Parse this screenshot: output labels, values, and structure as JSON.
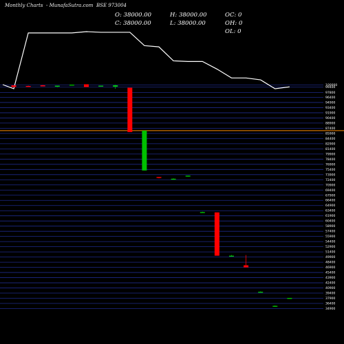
{
  "header": {
    "left": "Monthly Charts",
    "middle": "- MunafaSutra.com",
    "symbol": "BSE 973004"
  },
  "ohlc": {
    "o": "O: 38000.00",
    "h": "H: 38000.00",
    "oc": "OC: 0",
    "c": "C: 38000.00",
    "l": "L: 38000.00",
    "oh": "OH: 0",
    "ol": "OL: 0"
  },
  "colors": {
    "background": "#000000",
    "grid": "#1e2a8a",
    "up": "#00c000",
    "down": "#ff0000",
    "line": "#ffffff",
    "reference_line": "#ff8c00"
  },
  "chart_data": {
    "type": "candlestick",
    "ylim": [
      35000,
      100500
    ],
    "y_ticks": [
      100000,
      99400,
      97800,
      96400,
      94900,
      93400,
      91900,
      90400,
      88900,
      87400,
      85900,
      84400,
      82900,
      81400,
      79900,
      78400,
      76900,
      75400,
      73900,
      72400,
      70900,
      69400,
      67900,
      66400,
      64900,
      63400,
      61900,
      60400,
      58900,
      57400,
      55900,
      54400,
      52900,
      51400,
      49900,
      48400,
      46900,
      45400,
      43900,
      42400,
      40900,
      39400,
      37900,
      36400,
      34900
    ],
    "reference_line": 86700,
    "candles": [
      {
        "open": 99900,
        "high": 99900,
        "low": 99400,
        "close": 99400
      },
      {
        "open": 99700,
        "high": 99800,
        "low": 99500,
        "close": 99600
      },
      {
        "open": 99900,
        "high": 100000,
        "low": 99600,
        "close": 99600
      },
      {
        "open": 99500,
        "high": 99800,
        "low": 99300,
        "close": 99800
      },
      {
        "open": 100000,
        "high": 100100,
        "low": 99900,
        "close": 100100
      },
      {
        "open": 100200,
        "high": 100200,
        "low": 99400,
        "close": 99400
      },
      {
        "open": 99800,
        "high": 99800,
        "low": 99700,
        "close": 99800
      },
      {
        "open": 99500,
        "high": 100100,
        "low": 98900,
        "close": 99900
      },
      {
        "open": 99200,
        "high": 99200,
        "low": 86300,
        "close": 86300
      },
      {
        "open": 75100,
        "high": 86700,
        "low": 75100,
        "close": 86700
      },
      {
        "open": 73200,
        "high": 73200,
        "low": 72800,
        "close": 73000
      },
      {
        "open": 72600,
        "high": 72800,
        "low": 72400,
        "close": 72700
      },
      {
        "open": 73400,
        "high": 73600,
        "low": 73300,
        "close": 73600
      },
      {
        "open": 63000,
        "high": 63100,
        "low": 62800,
        "close": 63000
      },
      {
        "open": 62900,
        "high": 62900,
        "low": 50300,
        "close": 50300
      },
      {
        "open": 50300,
        "high": 50500,
        "low": 50200,
        "close": 50300
      },
      {
        "open": 47500,
        "high": 50500,
        "low": 46900,
        "close": 46900
      },
      {
        "open": 39800,
        "high": 39900,
        "low": 39700,
        "close": 39800
      },
      {
        "open": 35600,
        "high": 35800,
        "low": 35400,
        "close": 35700
      },
      {
        "open": 38000,
        "high": 38000,
        "low": 38000,
        "close": 38000
      }
    ],
    "line_series": [
      0,
      88,
      88,
      88,
      88,
      90,
      89,
      89,
      89,
      68,
      66,
      44,
      43,
      43,
      31,
      17,
      17,
      14,
      0,
      3
    ]
  }
}
